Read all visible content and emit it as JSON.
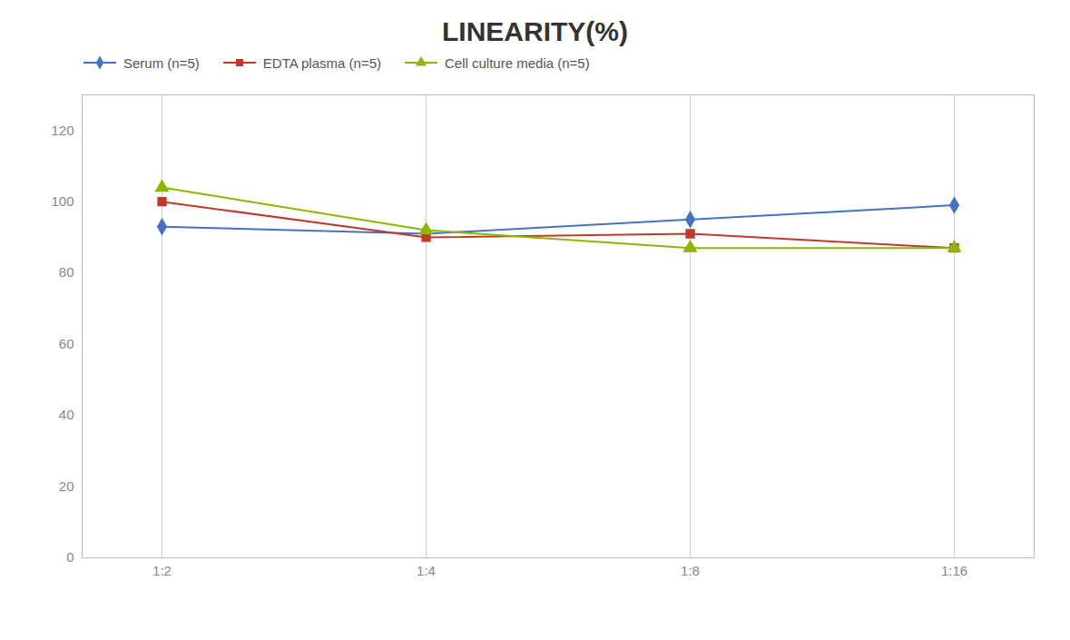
{
  "chart_data": {
    "type": "line",
    "title": "LINEARITY(%)",
    "categories": [
      "1:2",
      "1:4",
      "1:8",
      "1:16"
    ],
    "series": [
      {
        "name": "Serum (n=5)",
        "color": "#4472C4",
        "marker": "diamond",
        "values": [
          93,
          91,
          95,
          99
        ]
      },
      {
        "name": "EDTA plasma (n=5)",
        "color": "#C0392B",
        "marker": "square",
        "values": [
          100,
          90,
          91,
          87
        ]
      },
      {
        "name": "Cell culture media (n=5)",
        "color": "#8DB600",
        "marker": "triangle",
        "values": [
          104,
          92,
          87,
          87
        ]
      }
    ],
    "ylim": [
      0,
      130
    ],
    "yticks": [
      0,
      20,
      40,
      60,
      80,
      100,
      120
    ],
    "grid": "x",
    "legend": "top"
  }
}
